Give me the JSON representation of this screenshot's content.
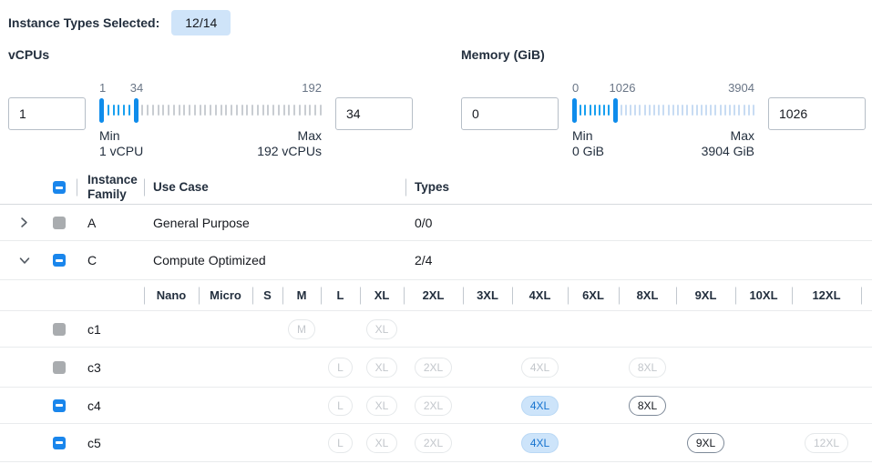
{
  "topbar": {
    "label": "Instance Types Selected:",
    "badge": "12/14"
  },
  "filters": {
    "vcpus": {
      "title": "vCPUs",
      "min_value": "1",
      "max_value": "34",
      "scale": {
        "low": "1",
        "mid": "34",
        "high": "192"
      },
      "min_caption": "Min",
      "min_detail": "1 vCPU",
      "max_caption": "Max",
      "max_detail": "192 vCPUs"
    },
    "memory": {
      "title": "Memory (GiB)",
      "min_value": "0",
      "max_value": "1026",
      "scale": {
        "low": "0",
        "mid": "1026",
        "high": "3904"
      },
      "min_caption": "Min",
      "min_detail": "0 GiB",
      "max_caption": "Max",
      "max_detail": "3904 GiB"
    }
  },
  "sliders": {
    "vcpus": {
      "active_ticks": 5,
      "inactive_ticks": 35
    },
    "memory": {
      "active_ticks": 7,
      "inactive_ticks": 29
    }
  },
  "table": {
    "header": {
      "family": "Instance Family",
      "use_case": "Use Case",
      "types": "Types"
    },
    "family_rows": [
      {
        "family": "A",
        "use_case": "General Purpose",
        "types": "0/0",
        "expanded": false
      },
      {
        "family": "C",
        "use_case": "Compute Optimized",
        "types": "2/4",
        "expanded": true
      }
    ],
    "size_header": [
      "Nano",
      "Micro",
      "S",
      "M",
      "L",
      "XL",
      "2XL",
      "3XL",
      "4XL",
      "6XL",
      "8XL",
      "9XL",
      "10XL",
      "12XL"
    ],
    "size_rows": [
      {
        "name": "c1",
        "pills": [
          {
            "label": "M",
            "column": "M",
            "state": "disabled"
          },
          {
            "label": "XL",
            "column": "XL",
            "state": "disabled"
          }
        ]
      },
      {
        "name": "c3",
        "pills": [
          {
            "label": "L",
            "column": "L",
            "state": "disabled"
          },
          {
            "label": "XL",
            "column": "XL",
            "state": "disabled"
          },
          {
            "label": "2XL",
            "column": "2XL",
            "state": "disabled"
          },
          {
            "label": "4XL",
            "column": "4XL",
            "state": "disabled"
          },
          {
            "label": "8XL",
            "column": "8XL",
            "state": "disabled"
          }
        ]
      },
      {
        "name": "c4",
        "pills": [
          {
            "label": "L",
            "column": "L",
            "state": "disabled"
          },
          {
            "label": "XL",
            "column": "XL",
            "state": "disabled"
          },
          {
            "label": "2XL",
            "column": "2XL",
            "state": "disabled"
          },
          {
            "label": "4XL",
            "column": "4XL",
            "state": "selected"
          },
          {
            "label": "8XL",
            "column": "8XL",
            "state": "enabled"
          }
        ]
      },
      {
        "name": "c5",
        "pills": [
          {
            "label": "L",
            "column": "L",
            "state": "disabled"
          },
          {
            "label": "XL",
            "column": "XL",
            "state": "disabled"
          },
          {
            "label": "2XL",
            "column": "2XL",
            "state": "disabled"
          },
          {
            "label": "4XL",
            "column": "4XL",
            "state": "selected"
          },
          {
            "label": "9XL",
            "column": "9XL",
            "state": "enabled"
          },
          {
            "label": "12XL",
            "column": "12XL",
            "state": "disabled"
          }
        ]
      }
    ]
  },
  "colors": {
    "accent_blue": "#1a86ec",
    "slider_tick_blue": "#18a0f0",
    "slider_handle_blue": "#0f8ceb",
    "badge_bg": "#cfe4f9",
    "selected_pill_bg": "#cde4fa",
    "selected_pill_text": "#1673cf",
    "disabled_checkbox_gray": "#a9acaf"
  }
}
